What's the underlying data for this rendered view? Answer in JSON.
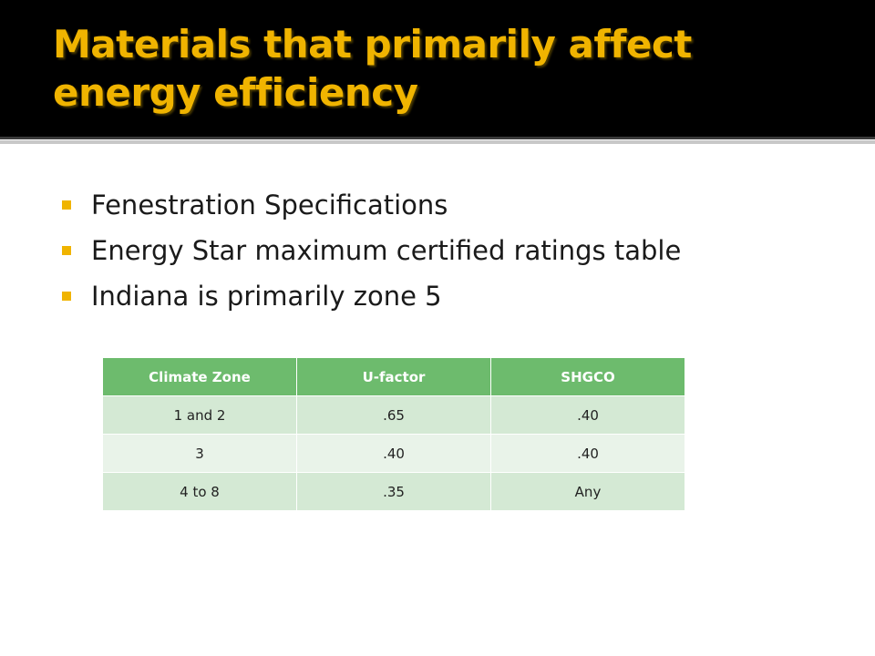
{
  "slide": {
    "title": "Materials that primarily affect energy efficiency",
    "bullets": [
      "Fenestration Specifications",
      "Energy Star maximum certified ratings table",
      "Indiana is primarily zone 5"
    ]
  },
  "table": {
    "headers": [
      "Climate Zone",
      "U-factor",
      "SHGCO"
    ],
    "rows": [
      [
        "1 and 2",
        ".65",
        ".40"
      ],
      [
        "3",
        ".40",
        ".40"
      ],
      [
        "4 to 8",
        ".35",
        "Any"
      ]
    ]
  },
  "colors": {
    "title_text": "#f0b400",
    "title_background": "#000000",
    "bullet_marker": "#f0b400",
    "table_header": "#6dbb6d",
    "table_row_dark": "#d4e9d4",
    "table_row_light": "#e9f3e9"
  }
}
